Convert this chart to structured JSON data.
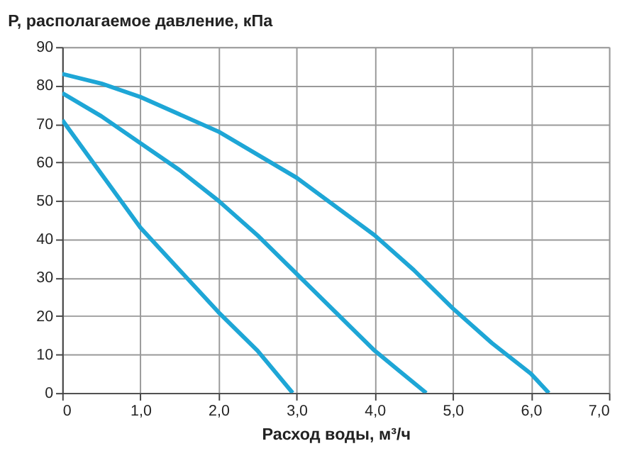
{
  "chart_data": {
    "type": "line",
    "ylabel": "P, располагаемое давление, кПа",
    "xlabel": "Расход воды, м³/ч",
    "series": [
      {
        "color": "#1ea6d6",
        "x": [
          0,
          0.5,
          1.0,
          1.5,
          2.0,
          2.5,
          2.95
        ],
        "values": [
          71,
          57,
          43,
          32,
          21,
          11,
          0
        ]
      },
      {
        "color": "#1ea6d6",
        "x": [
          0,
          0.5,
          1.0,
          1.5,
          2.0,
          2.5,
          3.0,
          3.5,
          4.0,
          4.3,
          4.66
        ],
        "values": [
          78,
          72,
          65,
          58,
          50,
          41,
          31,
          21,
          11,
          6,
          0
        ]
      },
      {
        "color": "#1ea6d6",
        "x": [
          0,
          0.5,
          1.0,
          2.0,
          3.0,
          4.0,
          4.5,
          5.0,
          5.5,
          6.0,
          6.23
        ],
        "values": [
          83,
          80.5,
          77,
          68,
          56,
          41,
          32,
          22,
          13,
          5,
          0
        ]
      }
    ],
    "xlim": [
      0,
      7
    ],
    "ylim": [
      0,
      90
    ],
    "xticks": [
      0,
      {
        "value": 1,
        "label": "1,0"
      },
      {
        "value": 2,
        "label": "2,0"
      },
      {
        "value": 3,
        "label": "3,0"
      },
      {
        "value": 4,
        "label": "4,0"
      },
      {
        "value": 5,
        "label": "5,0"
      },
      {
        "value": 6,
        "label": "6,0"
      },
      {
        "value": 7,
        "label": "7,0"
      }
    ],
    "yticks": [
      0,
      10,
      20,
      30,
      40,
      50,
      60,
      70,
      80,
      90
    ],
    "grid": true,
    "marker": "none",
    "line_style": "solid"
  }
}
